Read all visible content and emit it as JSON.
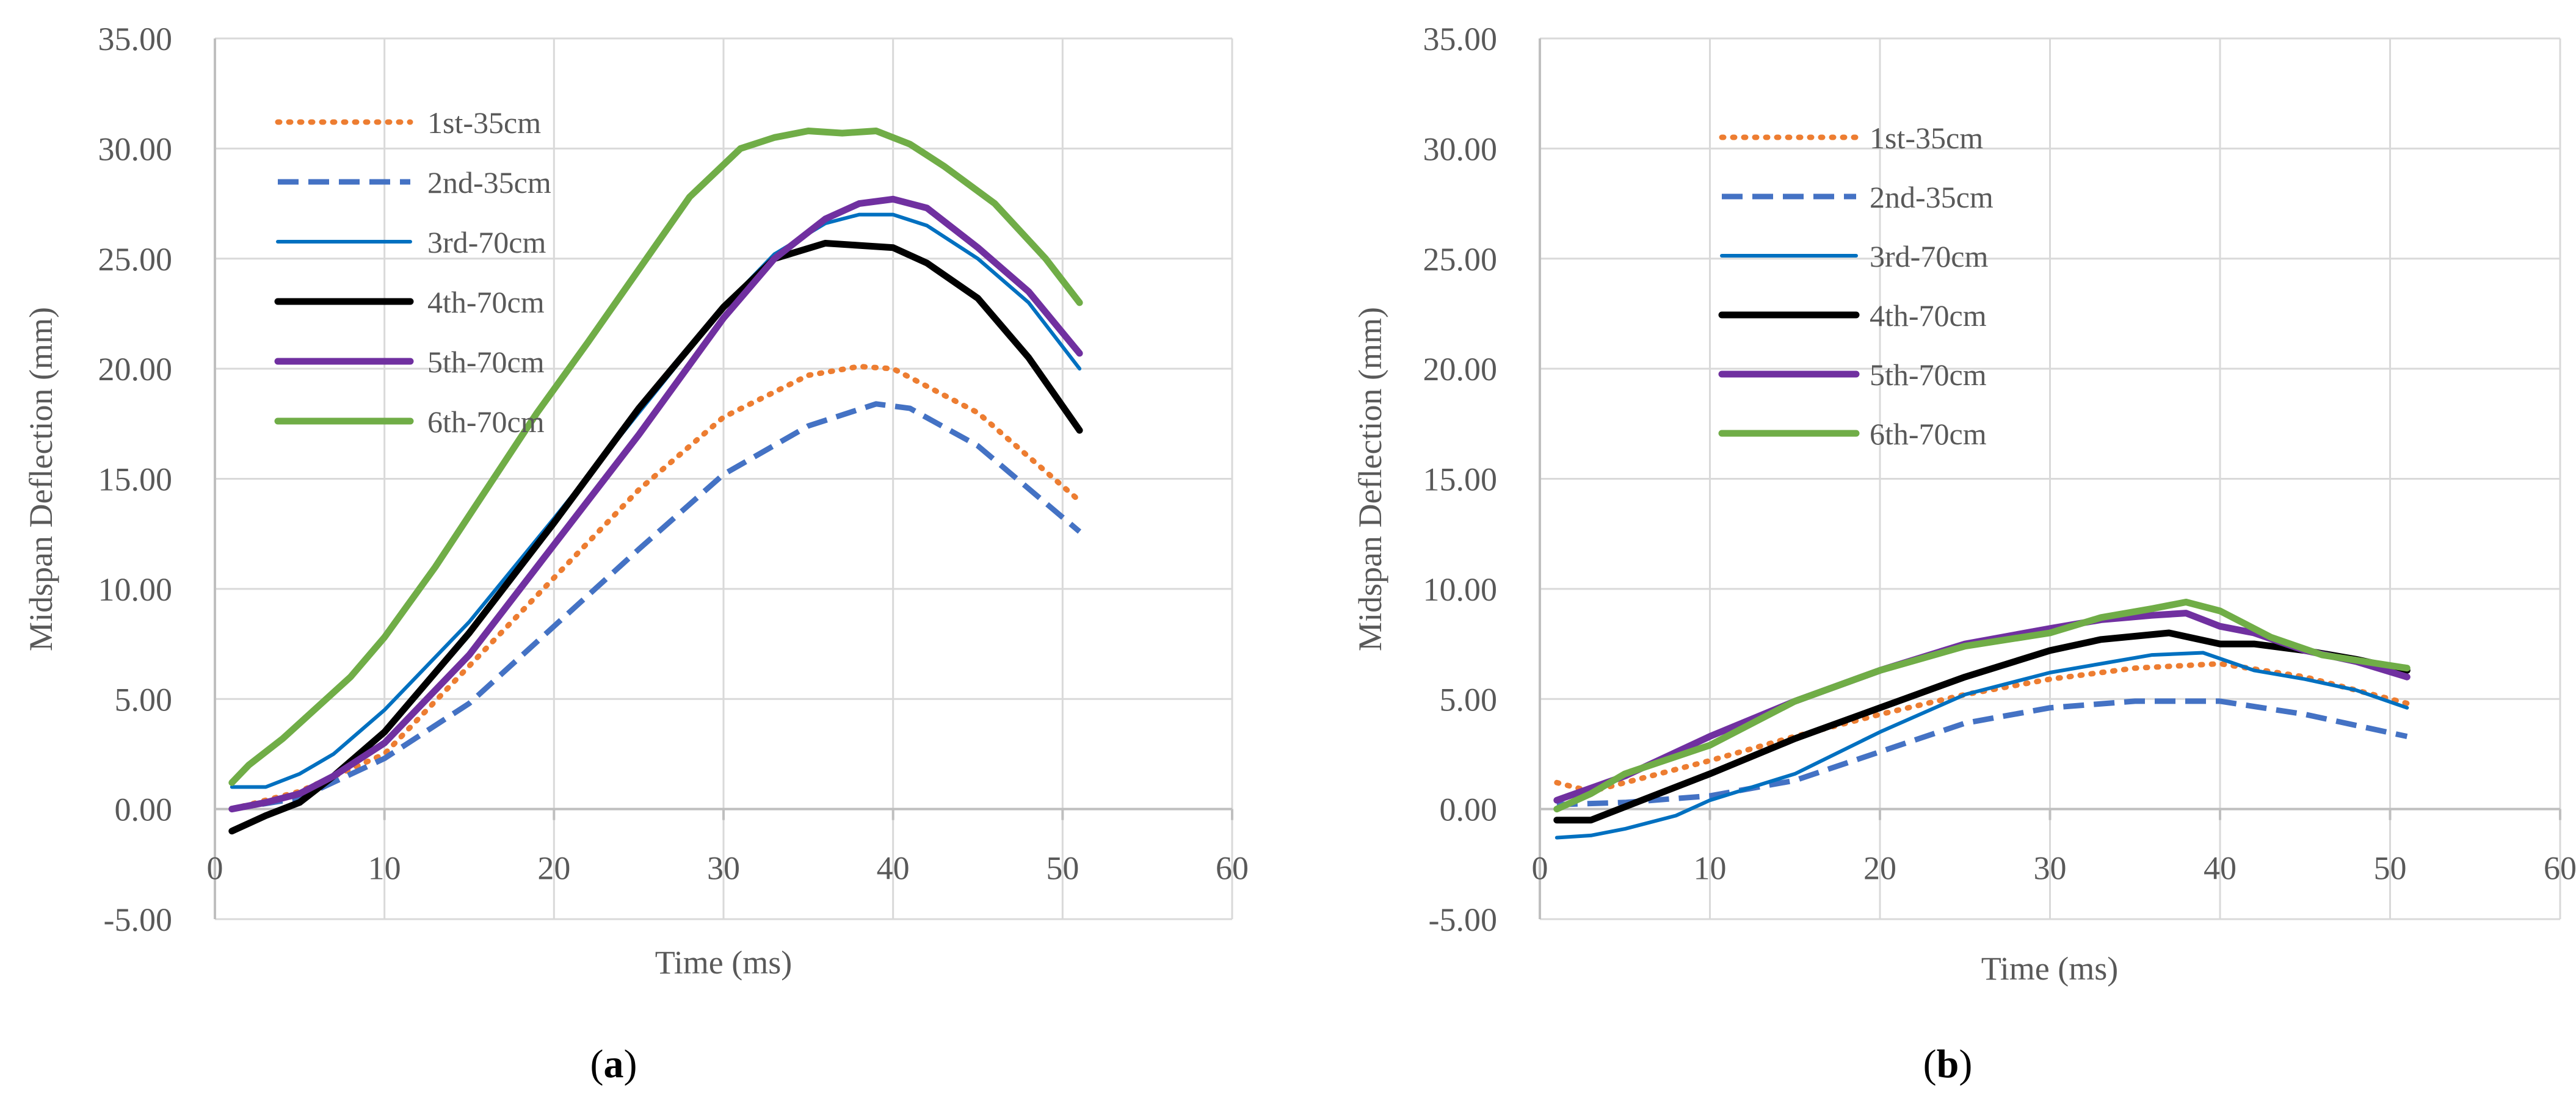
{
  "figure": {
    "panel_labels": [
      {
        "open": "(",
        "letter": "a",
        "close": ")"
      },
      {
        "open": "(",
        "letter": "b",
        "close": ")"
      }
    ]
  },
  "series_styles": [
    {
      "name": "1st-35cm",
      "color": "#ED7D31",
      "dash": "dot",
      "weight": "medium"
    },
    {
      "name": "2nd-35cm",
      "color": "#4472C4",
      "dash": "dash",
      "weight": "medium"
    },
    {
      "name": "3rd-70cm",
      "color": "#0070C0",
      "dash": "solid",
      "weight": "thin"
    },
    {
      "name": "4th-70cm",
      "color": "#000000",
      "dash": "solid",
      "weight": "thick"
    },
    {
      "name": "5th-70cm",
      "color": "#7030A0",
      "dash": "solid",
      "weight": "thick"
    },
    {
      "name": "6th-70cm",
      "color": "#70AD47",
      "dash": "solid",
      "weight": "thick"
    }
  ],
  "chart_data": [
    {
      "type": "line",
      "panel": "a",
      "xlabel": "Time (ms)",
      "ylabel": "Midspan Deflection (mm)",
      "xlim": [
        0,
        60
      ],
      "ylim": [
        -5,
        35
      ],
      "xticks": [
        0,
        10,
        20,
        30,
        40,
        50,
        60
      ],
      "xtick_labels": [
        "0",
        "10",
        "20",
        "30",
        "40",
        "50",
        "60"
      ],
      "yticks": [
        -5,
        0,
        5,
        10,
        15,
        20,
        25,
        30,
        35
      ],
      "ytick_labels": [
        "-5.00",
        "0.00",
        "5.00",
        "10.00",
        "15.00",
        "20.00",
        "25.00",
        "30.00",
        "35.00"
      ],
      "grid": true,
      "legend_position": "top-left",
      "series": [
        {
          "name": "1st-35cm",
          "x": [
            1,
            5,
            10,
            15,
            20,
            25,
            30,
            35,
            38,
            40,
            45,
            51
          ],
          "y": [
            0.0,
            0.8,
            2.5,
            6.5,
            10.5,
            14.5,
            17.8,
            19.7,
            20.1,
            20.0,
            18.0,
            14.0
          ]
        },
        {
          "name": "2nd-35cm",
          "x": [
            1,
            5,
            10,
            15,
            20,
            25,
            30,
            35,
            39,
            41,
            45,
            51
          ],
          "y": [
            0.0,
            0.5,
            2.3,
            4.8,
            8.3,
            11.8,
            15.2,
            17.4,
            18.4,
            18.2,
            16.5,
            12.6
          ]
        },
        {
          "name": "3rd-70cm",
          "x": [
            1,
            3,
            5,
            7,
            10,
            15,
            20,
            25,
            30,
            33,
            36,
            38,
            40,
            42,
            45,
            48,
            51
          ],
          "y": [
            1.0,
            1.0,
            1.6,
            2.5,
            4.5,
            8.5,
            13.2,
            18.0,
            22.8,
            25.2,
            26.6,
            27.0,
            27.0,
            26.5,
            25.0,
            23.0,
            20.0
          ]
        },
        {
          "name": "4th-70cm",
          "x": [
            1,
            3,
            5,
            7,
            10,
            15,
            20,
            25,
            30,
            33,
            36,
            38,
            40,
            42,
            45,
            48,
            51
          ],
          "y": [
            -1.0,
            -0.3,
            0.3,
            1.5,
            3.5,
            8.0,
            13.0,
            18.2,
            22.8,
            25.0,
            25.7,
            25.6,
            25.5,
            24.8,
            23.2,
            20.5,
            17.2
          ]
        },
        {
          "name": "5th-70cm",
          "x": [
            1,
            3,
            5,
            7,
            10,
            15,
            20,
            25,
            30,
            33,
            36,
            38,
            40,
            42,
            45,
            48,
            51
          ],
          "y": [
            0.0,
            0.3,
            0.7,
            1.5,
            3.0,
            7.0,
            12.0,
            17.0,
            22.3,
            25.0,
            26.8,
            27.5,
            27.7,
            27.3,
            25.5,
            23.5,
            20.7
          ]
        },
        {
          "name": "6th-70cm",
          "x": [
            1,
            2,
            4,
            6,
            8,
            10,
            13,
            16,
            19,
            22,
            25,
            28,
            31,
            33,
            35,
            37,
            39,
            41,
            43,
            46,
            49,
            51
          ],
          "y": [
            1.2,
            2.0,
            3.2,
            4.6,
            6.0,
            7.8,
            11.0,
            14.5,
            18.0,
            21.2,
            24.5,
            27.8,
            30.0,
            30.5,
            30.8,
            30.7,
            30.8,
            30.2,
            29.2,
            27.5,
            25.0,
            23.0
          ]
        }
      ]
    },
    {
      "type": "line",
      "panel": "b",
      "xlabel": "Time (ms)",
      "ylabel": "Midspan Deflection (mm)",
      "xlim": [
        0,
        60
      ],
      "ylim": [
        -5,
        35
      ],
      "xticks": [
        0,
        10,
        20,
        30,
        40,
        50,
        60
      ],
      "xtick_labels": [
        "0",
        "10",
        "20",
        "30",
        "40",
        "50",
        "60"
      ],
      "yticks": [
        -5,
        0,
        5,
        10,
        15,
        20,
        25,
        30,
        35
      ],
      "ytick_labels": [
        "-5.00",
        "0.00",
        "5.00",
        "10.00",
        "15.00",
        "20.00",
        "25.00",
        "30.00",
        "35.00"
      ],
      "grid": true,
      "legend_position": "top-center",
      "series": [
        {
          "name": "1st-35cm",
          "x": [
            1,
            3,
            5,
            10,
            15,
            20,
            25,
            30,
            35,
            40,
            45,
            51
          ],
          "y": [
            1.2,
            0.8,
            1.2,
            2.2,
            3.3,
            4.3,
            5.2,
            5.9,
            6.4,
            6.6,
            6.0,
            4.8
          ]
        },
        {
          "name": "2nd-35cm",
          "x": [
            1,
            5,
            10,
            15,
            20,
            25,
            30,
            35,
            40,
            45,
            51
          ],
          "y": [
            0.2,
            0.3,
            0.6,
            1.3,
            2.6,
            3.9,
            4.6,
            4.9,
            4.9,
            4.3,
            3.3
          ]
        },
        {
          "name": "3rd-70cm",
          "x": [
            1,
            3,
            5,
            8,
            10,
            15,
            20,
            25,
            30,
            33,
            36,
            39,
            42,
            45,
            48,
            51
          ],
          "y": [
            -1.3,
            -1.2,
            -0.9,
            -0.3,
            0.4,
            1.6,
            3.5,
            5.2,
            6.2,
            6.6,
            7.0,
            7.1,
            6.3,
            5.9,
            5.4,
            4.6
          ]
        },
        {
          "name": "4th-70cm",
          "x": [
            1,
            3,
            5,
            8,
            10,
            15,
            20,
            25,
            30,
            33,
            37,
            40,
            42,
            45,
            48,
            51
          ],
          "y": [
            -0.5,
            -0.5,
            0.1,
            1.0,
            1.6,
            3.2,
            4.6,
            6.0,
            7.2,
            7.7,
            8.0,
            7.5,
            7.5,
            7.2,
            6.8,
            6.3
          ]
        },
        {
          "name": "5th-70cm",
          "x": [
            1,
            5,
            10,
            15,
            20,
            25,
            30,
            33,
            36,
            38,
            40,
            42,
            45,
            48,
            51
          ],
          "y": [
            0.4,
            1.5,
            3.3,
            4.9,
            6.3,
            7.5,
            8.2,
            8.6,
            8.8,
            8.9,
            8.3,
            8.0,
            7.2,
            6.7,
            6.0
          ]
        },
        {
          "name": "6th-70cm",
          "x": [
            1,
            3,
            5,
            10,
            15,
            20,
            25,
            30,
            33,
            36,
            38,
            40,
            43,
            46,
            51
          ],
          "y": [
            0.0,
            0.7,
            1.6,
            2.9,
            4.9,
            6.3,
            7.4,
            8.0,
            8.7,
            9.1,
            9.4,
            9.0,
            7.8,
            7.0,
            6.4
          ]
        }
      ]
    }
  ]
}
